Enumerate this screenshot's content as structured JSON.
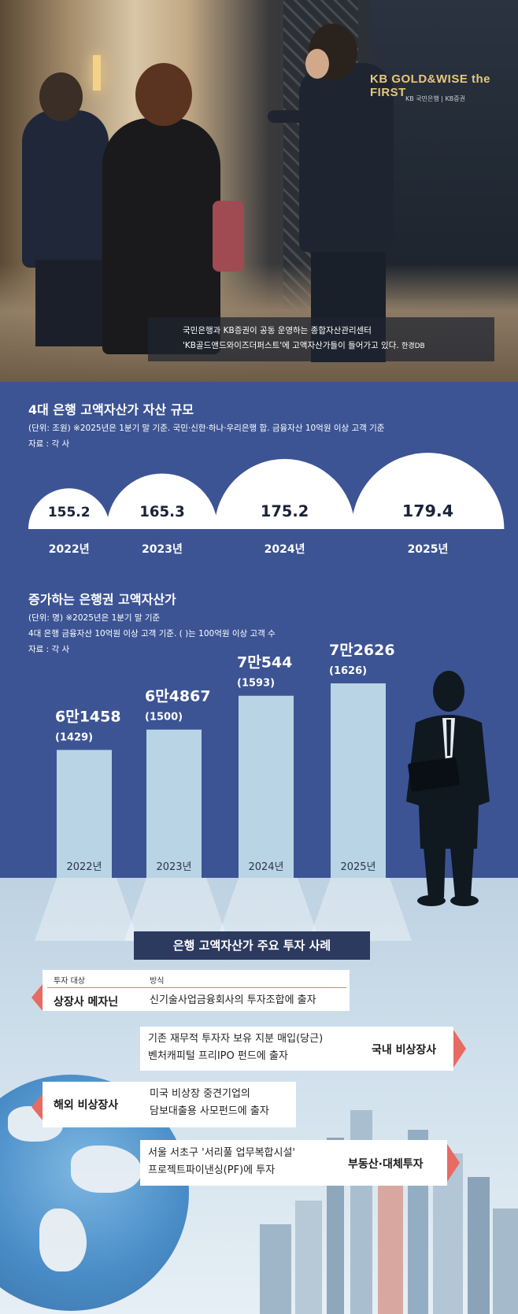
{
  "photo": {
    "brand": "KB GOLD&WISE the FIRST",
    "brand_sub": "KB 국민은행 | KB증권",
    "caption_line1": "국민은행과 KB증권이 공동 운영하는 종합자산관리센터",
    "caption_line2": "'KB골드앤드와이즈더퍼스트'에 고액자산가들이 들어가고 있다.",
    "caption_credit": "한경DB"
  },
  "chart1": {
    "title": "4대 은행 고액자산가 자산 규모",
    "note1": "(단위: 조원)  ※2025년은 1분기 말 기준. 국민·신한·하나·우리은행 합. 금융자산 10억원 이상 고객 기준",
    "note2": "자료 : 각 사"
  },
  "chart2": {
    "title": "증가하는 은행권 고액자산가",
    "note1": "(단위: 명)  ※2025년은 1분기 말 기준",
    "note2": "4대 은행 금융자산 10억원 이상 고객 기준. ( )는 100억원 이상 고객 수",
    "note3": "자료 : 각 사"
  },
  "chart_data": [
    {
      "type": "area",
      "title": "4대 은행 고액자산가 자산 규모",
      "unit": "조원",
      "categories": [
        "2022년",
        "2023년",
        "2024년",
        "2025년"
      ],
      "values": [
        155.2,
        165.3,
        175.2,
        179.4
      ],
      "value_labels": [
        "155.2",
        "165.3",
        "175.2",
        "179.4"
      ]
    },
    {
      "type": "bar",
      "title": "증가하는 은행권 고액자산가",
      "unit": "명",
      "categories": [
        "2022년",
        "2023년",
        "2024년",
        "2025년"
      ],
      "values": [
        61458,
        64867,
        70544,
        72626
      ],
      "value_labels": [
        "6만1458",
        "6만4867",
        "7만544",
        "7만2626"
      ],
      "sub_values": [
        1429,
        1500,
        1593,
        1626
      ],
      "sub_labels": [
        "(1429)",
        "(1500)",
        "(1593)",
        "(1626)"
      ]
    }
  ],
  "cases": {
    "title": "은행 고액자산가 주요 투자 사례",
    "header_type": "투자 대상",
    "header_method": "방식",
    "items": [
      {
        "type": "상장사 메자닌",
        "desc1": "신기술사업금융회사의 투자조합에 출자",
        "desc2": ""
      },
      {
        "type": "국내 비상장사",
        "desc1": "기존 재무적 투자자 보유 지분 매입(당근)",
        "desc2": "벤처캐피털 프리IPO 펀드에 출자"
      },
      {
        "type": "해외 비상장사",
        "desc1": "미국 비상장 중견기업의",
        "desc2": "담보대출용 사모펀드에 출자"
      },
      {
        "type": "부동산·대체투자",
        "desc1": "서울 서초구 '서리풀 업무복합시설'",
        "desc2": "프로젝트파이낸싱(PF)에 투자"
      }
    ]
  },
  "colors": {
    "navy": "#3c5494",
    "white": "#ffffff",
    "bar": "#b9d4e4",
    "case_title_bg": "#2d3a60",
    "arrow": "#e66b63"
  }
}
